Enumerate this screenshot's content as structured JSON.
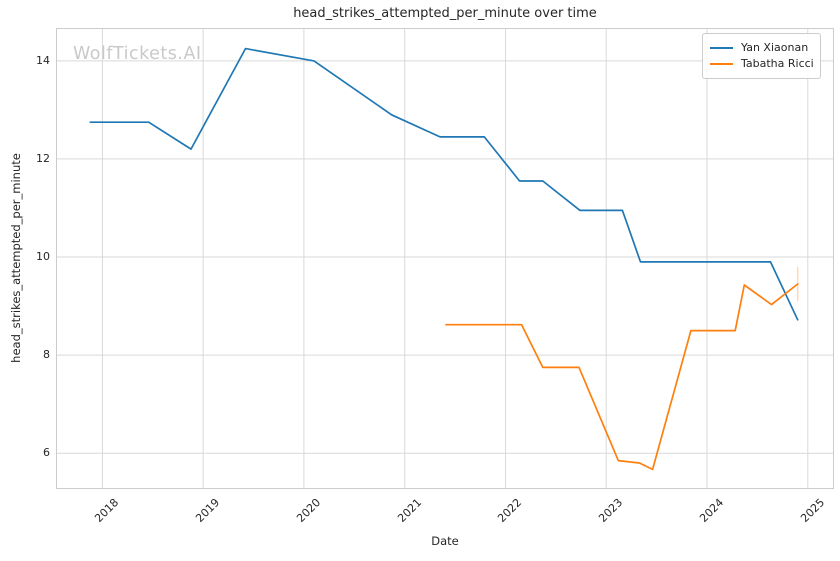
{
  "watermark": "WolfTickets.AI",
  "chart_data": {
    "type": "line",
    "title": "head_strikes_attempted_per_minute over time",
    "xlabel": "Date",
    "ylabel": "head_strikes_attempted_per_minute",
    "x_unit": "decimal_year",
    "x_ticks": [
      2018,
      2019,
      2020,
      2021,
      2022,
      2023,
      2024,
      2025
    ],
    "y_ticks": [
      6,
      8,
      10,
      12,
      14
    ],
    "xlim": [
      2017.54,
      2025.26
    ],
    "ylim": [
      5.27,
      14.67
    ],
    "grid": true,
    "legend_position": "upper right",
    "background": "#ffffff",
    "grid_color": "#d9d9d9",
    "series": [
      {
        "name": "Yan Xiaonan",
        "color": "#1f77b4",
        "points": [
          [
            2017.88,
            12.75
          ],
          [
            2018.46,
            12.75
          ],
          [
            2018.88,
            12.2
          ],
          [
            2019.42,
            14.25
          ],
          [
            2020.1,
            14.0
          ],
          [
            2020.87,
            12.9
          ],
          [
            2021.35,
            12.45
          ],
          [
            2021.79,
            12.45
          ],
          [
            2022.14,
            11.55
          ],
          [
            2022.37,
            11.55
          ],
          [
            2022.74,
            10.95
          ],
          [
            2023.16,
            10.95
          ],
          [
            2023.34,
            9.9
          ],
          [
            2024.63,
            9.9
          ],
          [
            2024.9,
            8.72
          ]
        ]
      },
      {
        "name": "Tabatha Ricci",
        "color": "#ff7f0e",
        "points": [
          [
            2021.41,
            8.62
          ],
          [
            2022.16,
            8.62
          ],
          [
            2022.37,
            7.75
          ],
          [
            2022.73,
            7.75
          ],
          [
            2023.12,
            5.85
          ],
          [
            2023.33,
            5.8
          ],
          [
            2023.46,
            5.67
          ],
          [
            2023.84,
            8.5
          ],
          [
            2024.28,
            8.5
          ],
          [
            2024.37,
            9.43
          ],
          [
            2024.64,
            9.03
          ],
          [
            2024.9,
            9.45
          ]
        ],
        "errorbar": {
          "x": 2024.9,
          "y_min": 9.1,
          "y_max": 9.8,
          "opacity": 0.3
        }
      }
    ]
  }
}
